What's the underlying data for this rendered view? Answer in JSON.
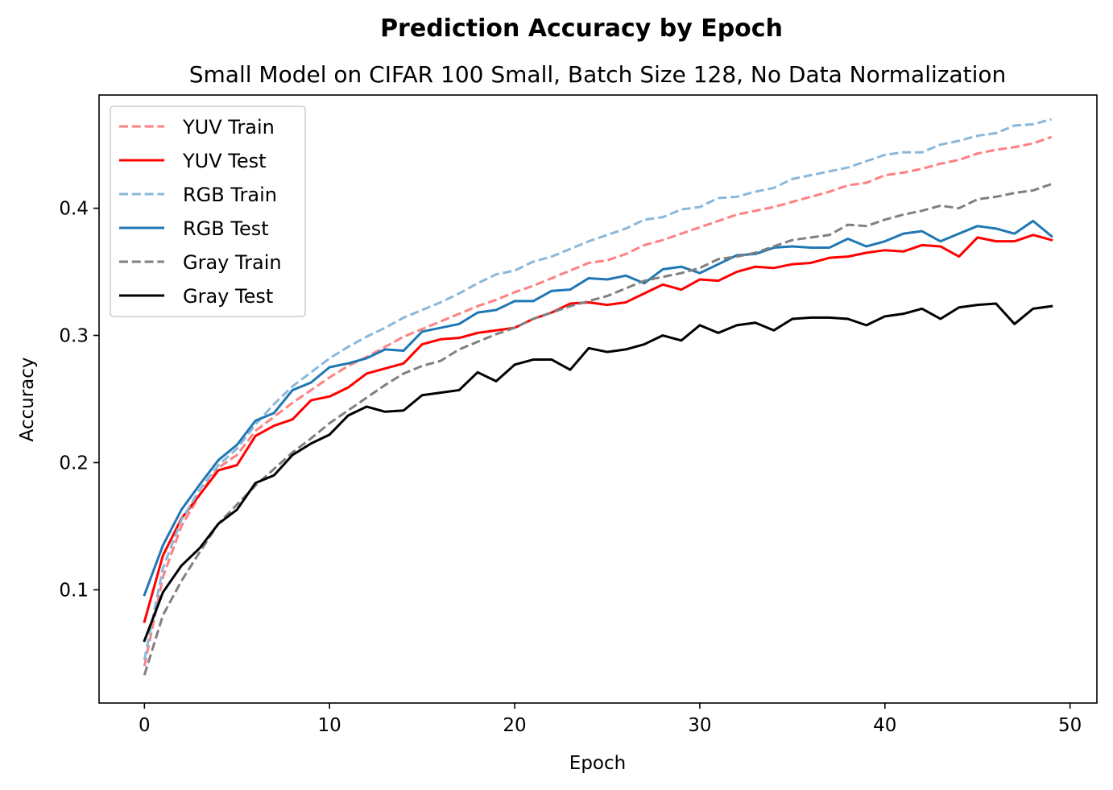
{
  "chart_data": {
    "type": "line",
    "suptitle": "Prediction Accuracy by Epoch",
    "title": "Small Model on CIFAR 100 Small, Batch Size 128, No Data Normalization",
    "xlabel": "Epoch",
    "ylabel": "Accuracy",
    "xlim": [
      -2.45,
      51.45
    ],
    "ylim": [
      0.011,
      0.489
    ],
    "xticks": [
      0,
      10,
      20,
      30,
      40,
      50
    ],
    "xtick_labels": [
      "0",
      "10",
      "20",
      "30",
      "40",
      "50"
    ],
    "yticks": [
      0.1,
      0.2,
      0.3,
      0.4
    ],
    "ytick_labels": [
      "0.1",
      "0.2",
      "0.3",
      "0.4"
    ],
    "grid": false,
    "legend_position": "top-left",
    "x": [
      0,
      1,
      2,
      3,
      4,
      5,
      6,
      7,
      8,
      9,
      10,
      11,
      12,
      13,
      14,
      15,
      16,
      17,
      18,
      19,
      20,
      21,
      22,
      23,
      24,
      25,
      26,
      27,
      28,
      29,
      30,
      31,
      32,
      33,
      34,
      35,
      36,
      37,
      38,
      39,
      40,
      41,
      42,
      43,
      44,
      45,
      46,
      47,
      48,
      49
    ],
    "series": [
      {
        "name": "YUV Train",
        "color": "#ff8080",
        "dashed": true,
        "values": [
          0.04,
          0.11,
          0.15,
          0.175,
          0.196,
          0.206,
          0.225,
          0.236,
          0.247,
          0.257,
          0.267,
          0.276,
          0.283,
          0.291,
          0.299,
          0.305,
          0.311,
          0.317,
          0.323,
          0.328,
          0.334,
          0.339,
          0.345,
          0.351,
          0.357,
          0.359,
          0.364,
          0.371,
          0.375,
          0.38,
          0.385,
          0.39,
          0.395,
          0.398,
          0.401,
          0.405,
          0.409,
          0.413,
          0.418,
          0.42,
          0.426,
          0.428,
          0.431,
          0.435,
          0.438,
          0.443,
          0.446,
          0.448,
          0.451,
          0.456
        ]
      },
      {
        "name": "YUV Test",
        "color": "#ff0000",
        "dashed": false,
        "values": [
          0.075,
          0.127,
          0.156,
          0.175,
          0.194,
          0.198,
          0.221,
          0.229,
          0.234,
          0.249,
          0.252,
          0.259,
          0.27,
          0.274,
          0.278,
          0.293,
          0.297,
          0.298,
          0.302,
          0.304,
          0.306,
          0.313,
          0.318,
          0.325,
          0.326,
          0.324,
          0.326,
          0.333,
          0.34,
          0.336,
          0.344,
          0.343,
          0.35,
          0.354,
          0.353,
          0.356,
          0.357,
          0.361,
          0.362,
          0.365,
          0.367,
          0.366,
          0.371,
          0.37,
          0.362,
          0.377,
          0.374,
          0.374,
          0.379,
          0.375
        ]
      },
      {
        "name": "RGB Train",
        "color": "#8ab8da",
        "dashed": true,
        "values": [
          0.045,
          0.117,
          0.155,
          0.179,
          0.198,
          0.211,
          0.23,
          0.246,
          0.26,
          0.271,
          0.282,
          0.291,
          0.299,
          0.306,
          0.314,
          0.32,
          0.326,
          0.333,
          0.341,
          0.348,
          0.351,
          0.358,
          0.362,
          0.368,
          0.374,
          0.379,
          0.384,
          0.391,
          0.393,
          0.399,
          0.401,
          0.408,
          0.409,
          0.413,
          0.416,
          0.423,
          0.426,
          0.429,
          0.432,
          0.437,
          0.442,
          0.444,
          0.444,
          0.45,
          0.453,
          0.457,
          0.459,
          0.465,
          0.466,
          0.47
        ]
      },
      {
        "name": "RGB Test",
        "color": "#1f77b4",
        "dashed": false,
        "values": [
          0.096,
          0.135,
          0.163,
          0.183,
          0.202,
          0.214,
          0.233,
          0.239,
          0.257,
          0.263,
          0.275,
          0.278,
          0.282,
          0.289,
          0.288,
          0.303,
          0.306,
          0.309,
          0.318,
          0.32,
          0.327,
          0.327,
          0.335,
          0.336,
          0.345,
          0.344,
          0.347,
          0.341,
          0.352,
          0.354,
          0.349,
          0.356,
          0.363,
          0.364,
          0.369,
          0.37,
          0.369,
          0.369,
          0.376,
          0.37,
          0.374,
          0.38,
          0.382,
          0.374,
          0.38,
          0.386,
          0.384,
          0.38,
          0.39,
          0.378
        ]
      },
      {
        "name": "Gray Train",
        "color": "#808080",
        "dashed": true,
        "values": [
          0.033,
          0.08,
          0.107,
          0.13,
          0.152,
          0.167,
          0.182,
          0.195,
          0.208,
          0.219,
          0.231,
          0.241,
          0.251,
          0.261,
          0.27,
          0.276,
          0.28,
          0.289,
          0.295,
          0.301,
          0.306,
          0.313,
          0.318,
          0.323,
          0.327,
          0.331,
          0.337,
          0.343,
          0.346,
          0.349,
          0.353,
          0.36,
          0.362,
          0.365,
          0.37,
          0.375,
          0.377,
          0.379,
          0.387,
          0.386,
          0.391,
          0.395,
          0.398,
          0.402,
          0.4,
          0.407,
          0.409,
          0.412,
          0.414,
          0.419
        ]
      },
      {
        "name": "Gray Test",
        "color": "#000000",
        "dashed": false,
        "values": [
          0.06,
          0.098,
          0.119,
          0.133,
          0.152,
          0.163,
          0.184,
          0.19,
          0.206,
          0.215,
          0.222,
          0.237,
          0.244,
          0.24,
          0.241,
          0.253,
          0.255,
          0.257,
          0.271,
          0.264,
          0.277,
          0.281,
          0.281,
          0.273,
          0.29,
          0.287,
          0.289,
          0.293,
          0.3,
          0.296,
          0.308,
          0.302,
          0.308,
          0.31,
          0.304,
          0.313,
          0.314,
          0.314,
          0.313,
          0.308,
          0.315,
          0.317,
          0.321,
          0.313,
          0.322,
          0.324,
          0.325,
          0.309,
          0.321,
          0.323
        ]
      }
    ]
  }
}
